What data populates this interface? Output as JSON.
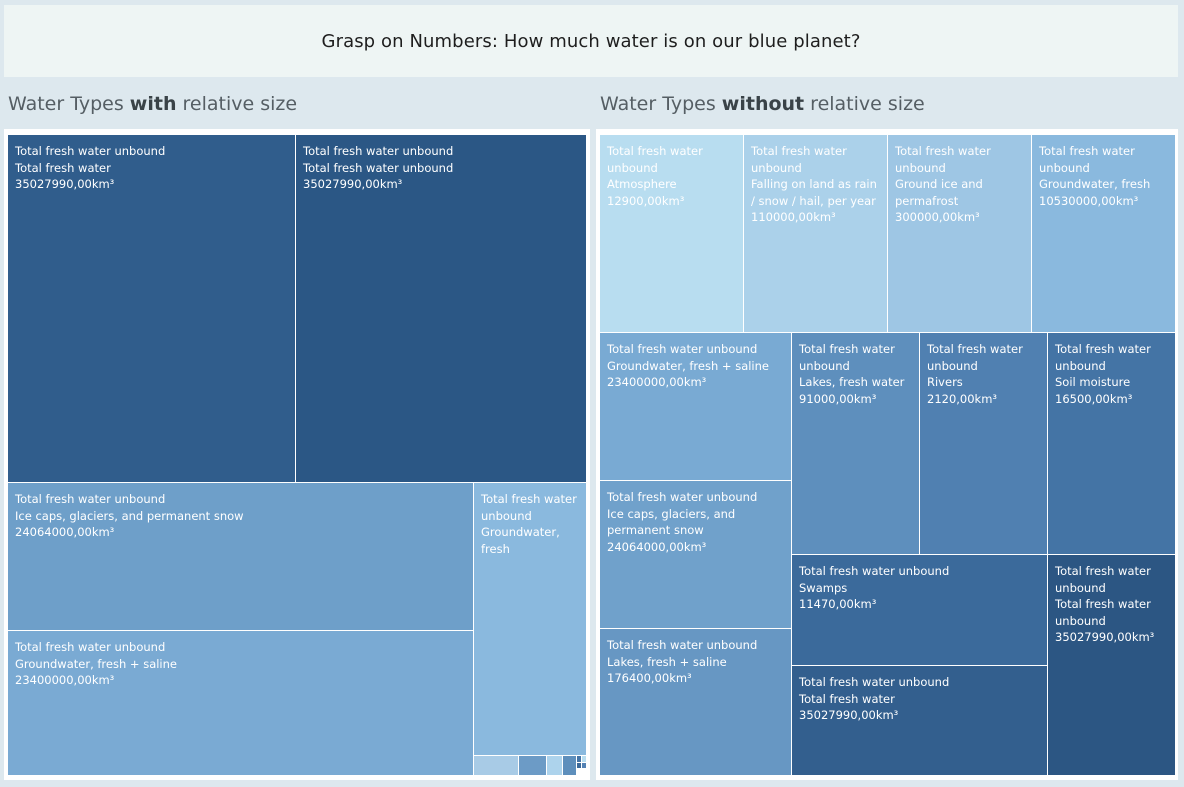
{
  "title": "Grasp on Numbers: How much water is on our blue planet?",
  "left_panel": {
    "prefix": "Water Types ",
    "bold": "with",
    "suffix": " relative size"
  },
  "right_panel": {
    "prefix": "Water Types ",
    "bold": "without",
    "suffix": " relative size"
  },
  "colors": {
    "background": "#dde8ee",
    "title_bg": "#eef5f4",
    "palette": "blues"
  },
  "chart_data": [
    {
      "type": "treemap",
      "title": "Water Types with relative size",
      "items": [
        {
          "group": "Total fresh water unbound",
          "name": "Total fresh water",
          "value": 35027990,
          "label": "35027990,00km³",
          "color": "#305d8c"
        },
        {
          "group": "Total fresh water unbound",
          "name": "Total fresh water unbound",
          "value": 35027990,
          "label": "35027990,00km³",
          "color": "#2b5785"
        },
        {
          "group": "Total fresh water unbound",
          "name": "Ice caps, glaciers, and permanent snow",
          "value": 24064000,
          "label": "24064000,00km³",
          "color": "#6e9fc9"
        },
        {
          "group": "Total fresh water unbound",
          "name": "Groundwater, fresh + saline",
          "value": 23400000,
          "label": "23400000,00km³",
          "color": "#7aaad3"
        },
        {
          "group": "Total fresh water unbound",
          "name": "Groundwater, fresh",
          "value": 10530000,
          "label": "",
          "color": "#8ab9de"
        },
        {
          "group": "",
          "name": "",
          "value": 300000,
          "label": "",
          "color": "#a8cbe6"
        },
        {
          "group": "",
          "name": "",
          "value": 176400,
          "label": "",
          "color": "#6c9bc6"
        },
        {
          "group": "",
          "name": "",
          "value": 110000,
          "label": "",
          "color": "#add3ec"
        },
        {
          "group": "",
          "name": "",
          "value": 91000,
          "label": "",
          "color": "#5e8fbc"
        },
        {
          "group": "",
          "name": "",
          "value": 16500,
          "label": "",
          "color": "#4474a6"
        },
        {
          "group": "",
          "name": "",
          "value": 12900,
          "label": "",
          "color": "#b9ddef"
        },
        {
          "group": "",
          "name": "",
          "value": 11470,
          "label": "",
          "color": "#3c6a9a"
        },
        {
          "group": "",
          "name": "",
          "value": 2120,
          "label": "",
          "color": "#5482b4"
        }
      ]
    },
    {
      "type": "treemap",
      "title": "Water Types without relative size",
      "items": [
        {
          "group": "Total fresh water unbound",
          "name": "Atmosphere",
          "value": 12900,
          "label": "12900,00km³",
          "color": "#b8ddf0"
        },
        {
          "group": "Total fresh water unbound",
          "name": "Falling on land as rain / snow / hail, per year",
          "value": 110000,
          "label": "110000,00km³",
          "color": "#abd1ea"
        },
        {
          "group": "Total fresh water unbound",
          "name": "Ground ice and permafrost",
          "value": 300000,
          "label": "300000,00km³",
          "color": "#9ec6e4"
        },
        {
          "group": "Total fresh water unbound",
          "name": "Groundwater, fresh",
          "value": 10530000,
          "label": "10530000,00km³",
          "color": "#8ab9de"
        },
        {
          "group": "Total fresh water unbound",
          "name": "Groundwater, fresh + saline",
          "value": 23400000,
          "label": "23400000,00km³",
          "color": "#79aad3"
        },
        {
          "group": "Total fresh water unbound",
          "name": "Lakes, fresh water",
          "value": 91000,
          "label": "91000,00km³",
          "color": "#5e8fbd"
        },
        {
          "group": "Total fresh water unbound",
          "name": "Rivers",
          "value": 2120,
          "label": "2120,00km³",
          "color": "#5080b1"
        },
        {
          "group": "Total fresh water unbound",
          "name": "Soil moisture",
          "value": 16500,
          "label": "16500,00km³",
          "color": "#4474a5"
        },
        {
          "group": "Total fresh water unbound",
          "name": "Ice caps, glaciers, and permanent snow",
          "value": 24064000,
          "label": "24064000,00km³",
          "color": "#70a1cb"
        },
        {
          "group": "Total fresh water unbound",
          "name": "Swamps",
          "value": 11470,
          "label": "11470,00km³",
          "color": "#3b6a9b"
        },
        {
          "group": "Total fresh water unbound",
          "name": "Total fresh water unbound",
          "value": 35027990,
          "label": "35027990,00km³",
          "color": "#2c5683"
        },
        {
          "group": "Total fresh water unbound",
          "name": "Lakes, fresh + saline",
          "value": 176400,
          "label": "176400,00km³",
          "color": "#6797c3"
        },
        {
          "group": "Total fresh water unbound",
          "name": "Total fresh water",
          "value": 35027990,
          "label": "35027990,00km³",
          "color": "#335f8e"
        }
      ]
    }
  ]
}
